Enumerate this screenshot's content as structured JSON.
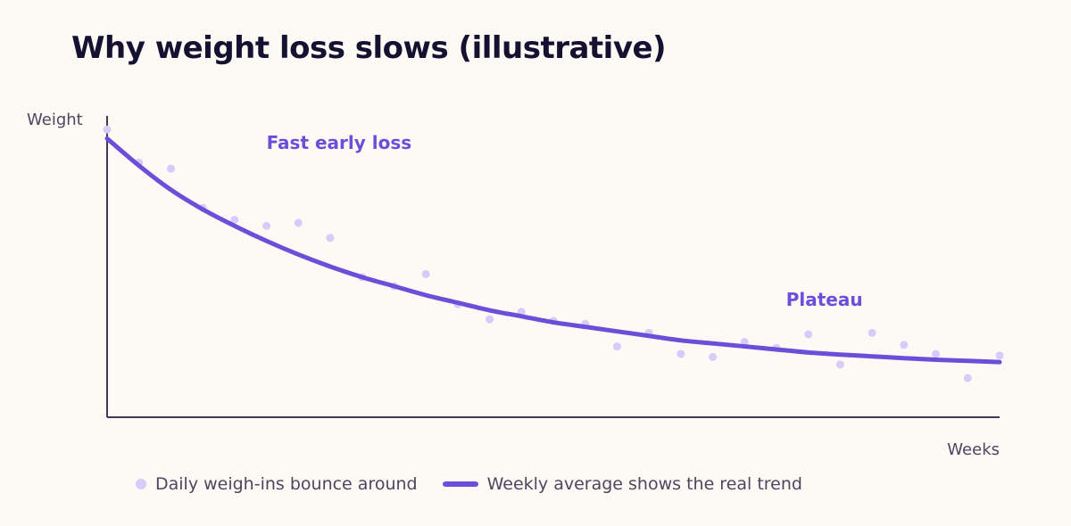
{
  "chart_data": {
    "type": "scatter",
    "title": "Why weight loss slows (illustrative)",
    "xlabel": "Weeks",
    "ylabel": "Weight",
    "xlim": [
      0,
      28
    ],
    "ylim": [
      0,
      100
    ],
    "grid": false,
    "legend_position": "bottom",
    "annotations": [
      {
        "text": "Fast early loss",
        "x": 5,
        "y": 89
      },
      {
        "text": "Plateau",
        "x": 21.3,
        "y": 37
      }
    ],
    "series": [
      {
        "name": "Daily weigh-ins bounce around",
        "kind": "scatter",
        "color": "#d6ccf9",
        "points": [
          [
            0,
            95.5
          ],
          [
            1,
            84.5
          ],
          [
            2,
            82.5
          ],
          [
            3,
            69.5
          ],
          [
            4,
            65.5
          ],
          [
            5,
            63.5
          ],
          [
            6,
            64.5
          ],
          [
            7,
            59.5
          ],
          [
            8,
            46.5
          ],
          [
            9,
            43.5
          ],
          [
            10,
            47.5
          ],
          [
            11,
            37.5
          ],
          [
            12,
            32.5
          ],
          [
            13,
            35
          ],
          [
            14,
            32
          ],
          [
            15,
            31
          ],
          [
            16,
            23.5
          ],
          [
            17,
            28
          ],
          [
            18,
            21
          ],
          [
            19,
            20
          ],
          [
            20,
            25
          ],
          [
            21,
            23
          ],
          [
            22,
            27.5
          ],
          [
            23,
            17.5
          ],
          [
            24,
            28
          ],
          [
            25,
            24
          ],
          [
            26,
            21
          ],
          [
            27,
            13
          ],
          [
            28,
            20.5
          ]
        ]
      },
      {
        "name": "Weekly average shows the real trend",
        "kind": "line",
        "color": "#6c4fd9",
        "points": [
          [
            0,
            92.5
          ],
          [
            1,
            83.5
          ],
          [
            2,
            75.5
          ],
          [
            3,
            69
          ],
          [
            4,
            63.5
          ],
          [
            5,
            58.5
          ],
          [
            6,
            54
          ],
          [
            7,
            50
          ],
          [
            8,
            46.5
          ],
          [
            9,
            43.5
          ],
          [
            10,
            40.5
          ],
          [
            11,
            38
          ],
          [
            12,
            35.5
          ],
          [
            13,
            33.5
          ],
          [
            14,
            31.5
          ],
          [
            15,
            30
          ],
          [
            16,
            28.5
          ],
          [
            17,
            27
          ],
          [
            18,
            25.5
          ],
          [
            19,
            24.5
          ],
          [
            20,
            23.5
          ],
          [
            21,
            22.5
          ],
          [
            22,
            21.5
          ],
          [
            23,
            20.8
          ],
          [
            24,
            20.2
          ],
          [
            25,
            19.6
          ],
          [
            26,
            19.1
          ],
          [
            27,
            18.7
          ],
          [
            28,
            18.3
          ]
        ]
      }
    ]
  }
}
